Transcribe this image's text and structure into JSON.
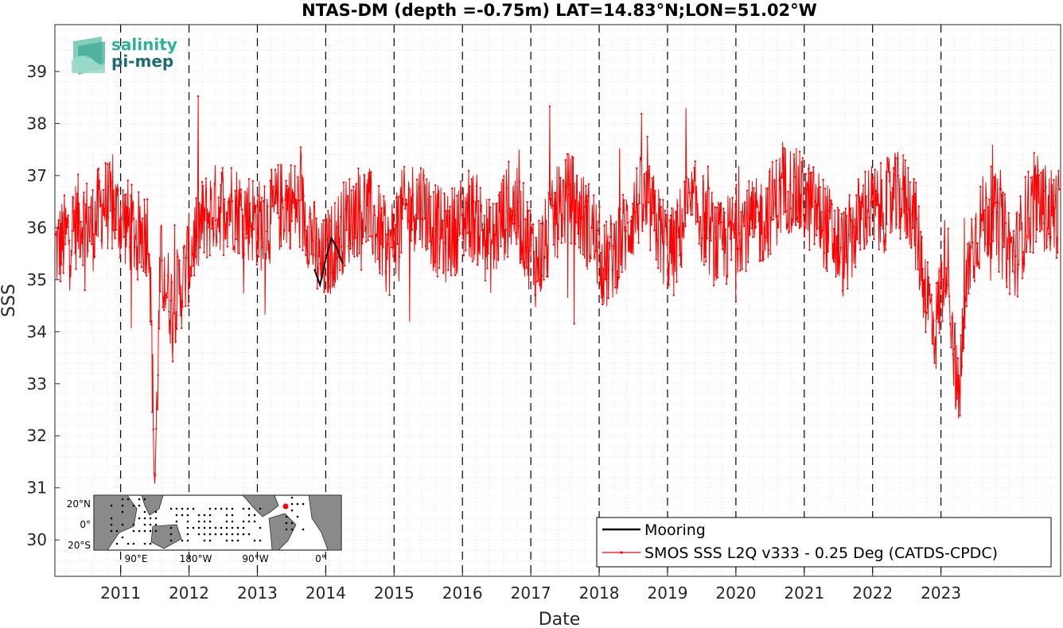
{
  "chart_data": {
    "type": "line",
    "title": "NTAS-DM (depth =-0.75m) LAT=14.83°N;LON=51.02°W",
    "xlabel": "Date",
    "ylabel": "SSS",
    "xlim": [
      "2010-01-15",
      "2024-10-01"
    ],
    "ylim": [
      29.3,
      39.9
    ],
    "x_ticks": [
      "2011",
      "2012",
      "2013",
      "2014",
      "2015",
      "2016",
      "2017",
      "2018",
      "2019",
      "2020",
      "2021",
      "2022",
      "2023"
    ],
    "y_ticks": [
      "30",
      "31",
      "32",
      "33",
      "34",
      "35",
      "36",
      "37",
      "38",
      "39"
    ],
    "grid": "minor dotted",
    "year_separators": "dashed black vertical lines at each Jan 1",
    "legend": {
      "position": "bottom-right",
      "entries": [
        {
          "label": "Mooring",
          "color": "#000000"
        },
        {
          "label": "SMOS SSS L2Q v333 - 0.25 Deg (CATDS-CPDC)",
          "color": "#ff0000"
        }
      ]
    },
    "series": [
      {
        "name": "SMOS SSS L2Q v333 - 0.25 Deg (CATDS-CPDC)",
        "color": "#ff0000",
        "x": [
          "2010-02",
          "2010-04",
          "2010-06",
          "2010-08",
          "2010-10",
          "2010-12",
          "2011-02",
          "2011-04",
          "2011-06",
          "2011-07",
          "2011-08",
          "2011-10",
          "2011-12",
          "2012-02",
          "2012-04",
          "2012-06",
          "2012-08",
          "2012-10",
          "2012-12",
          "2013-02",
          "2013-04",
          "2013-06",
          "2013-08",
          "2013-10",
          "2013-12",
          "2014-02",
          "2014-04",
          "2014-06",
          "2014-08",
          "2014-10",
          "2014-12",
          "2015-02",
          "2015-04",
          "2015-06",
          "2015-08",
          "2015-10",
          "2015-12",
          "2016-02",
          "2016-04",
          "2016-06",
          "2016-08",
          "2016-10",
          "2016-12",
          "2017-02",
          "2017-04",
          "2017-06",
          "2017-08",
          "2017-10",
          "2017-12",
          "2018-02",
          "2018-04",
          "2018-06",
          "2018-08",
          "2018-10",
          "2018-12",
          "2019-02",
          "2019-04",
          "2019-06",
          "2019-08",
          "2019-10",
          "2019-12",
          "2020-02",
          "2020-04",
          "2020-06",
          "2020-08",
          "2020-10",
          "2020-12",
          "2021-02",
          "2021-04",
          "2021-06",
          "2021-08",
          "2021-10",
          "2021-12",
          "2022-02",
          "2022-04",
          "2022-06",
          "2022-08",
          "2022-10",
          "2022-12",
          "2023-02",
          "2023-04",
          "2023-06",
          "2023-08",
          "2023-10",
          "2023-12",
          "2024-02",
          "2024-04",
          "2024-06",
          "2024-08"
        ],
        "values": [
          35.6,
          35.9,
          36.2,
          36.0,
          36.5,
          36.3,
          36.1,
          35.8,
          36.0,
          31.0,
          35.3,
          34.5,
          35.0,
          35.8,
          36.2,
          36.4,
          36.5,
          36.3,
          36.2,
          36.0,
          36.3,
          36.5,
          36.4,
          36.1,
          35.2,
          35.6,
          36.0,
          36.3,
          36.4,
          36.0,
          35.5,
          36.2,
          36.4,
          36.5,
          36.0,
          35.8,
          36.0,
          36.3,
          36.1,
          35.6,
          36.2,
          36.4,
          35.9,
          35.3,
          35.8,
          36.4,
          36.6,
          36.2,
          35.9,
          35.2,
          35.6,
          36.0,
          36.5,
          36.3,
          35.8,
          35.5,
          36.2,
          36.4,
          36.0,
          35.6,
          35.8,
          36.1,
          36.0,
          36.2,
          36.5,
          36.8,
          36.6,
          36.4,
          36.2,
          35.8,
          35.5,
          36.0,
          36.4,
          36.3,
          36.5,
          36.6,
          36.4,
          35.0,
          34.0,
          35.6,
          32.6,
          35.5,
          36.1,
          36.3,
          35.8,
          35.4,
          36.2,
          36.5,
          36.3
        ],
        "noise_amplitude": 0.9
      },
      {
        "name": "Mooring",
        "color": "#000000",
        "x": [
          "2013-11",
          "2013-12",
          "2014-01",
          "2014-02",
          "2014-03",
          "2014-04"
        ],
        "values": [
          35.2,
          34.9,
          35.4,
          35.8,
          35.6,
          35.3
        ]
      }
    ],
    "inset_map": {
      "x_ticks": [
        "90°E",
        "180°W",
        "90°W",
        "0°"
      ],
      "y_ticks": [
        "20°N",
        "0°",
        "20°S"
      ],
      "marker_color": "#ff0000"
    },
    "logo": {
      "line1": "salinity",
      "line2": "pi-mep"
    }
  }
}
